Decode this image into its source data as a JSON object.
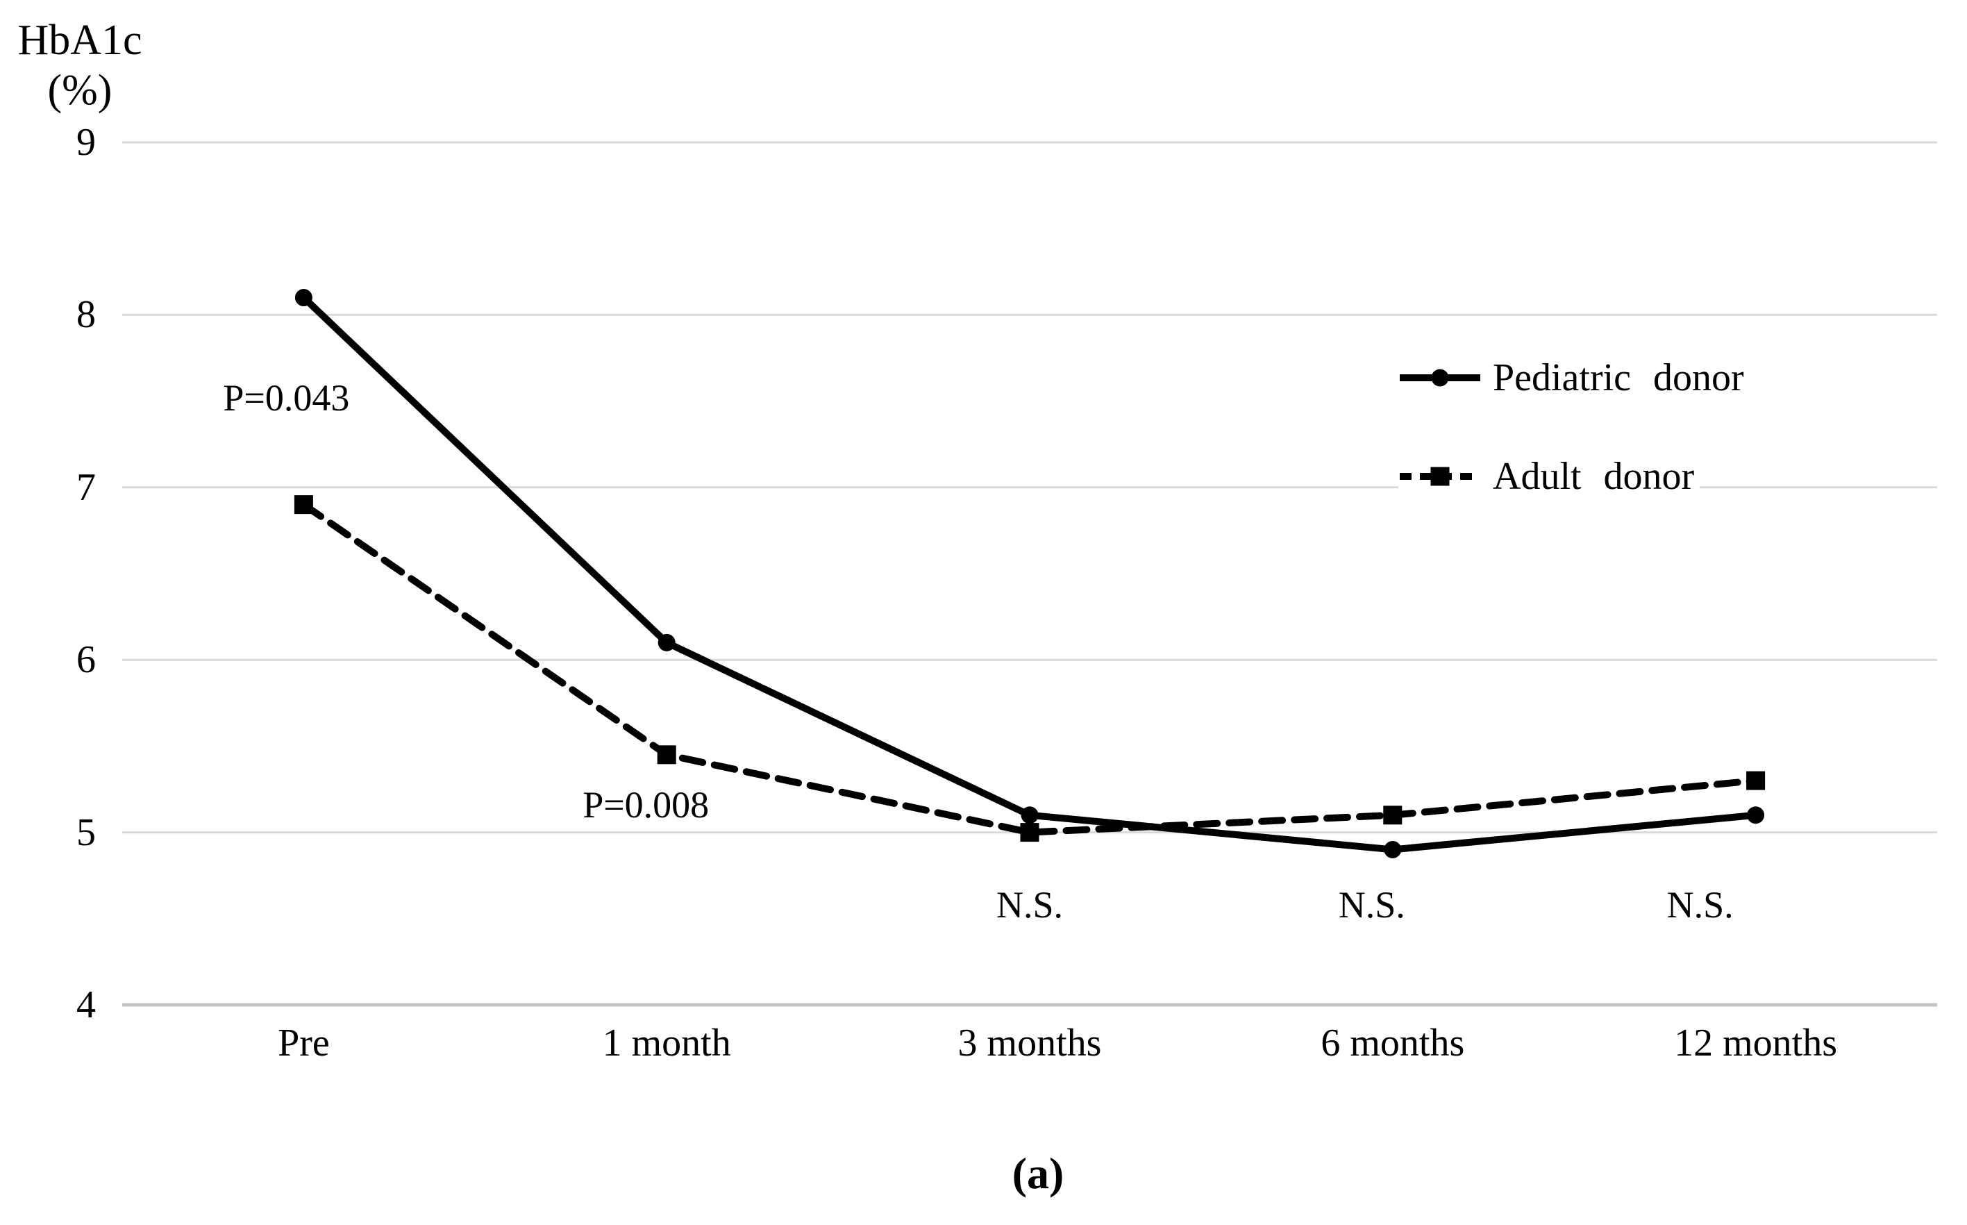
{
  "y_axis": {
    "title_line1": "HbA1c",
    "title_line2": "(%)"
  },
  "caption": "(a)",
  "chart_data": {
    "type": "line",
    "title": "",
    "ylabel": "HbA1c (%)",
    "xlabel": "",
    "categories": [
      "Pre",
      "1 month",
      "3 months",
      "6 months",
      "12 months"
    ],
    "series": [
      {
        "name": "Pediatric donor",
        "line_style": "solid",
        "marker": "circle",
        "color": "#000000",
        "values": [
          8.1,
          6.1,
          5.1,
          4.9,
          5.1
        ]
      },
      {
        "name": "Adult donor",
        "line_style": "dashed",
        "marker": "square",
        "color": "#000000",
        "values": [
          6.9,
          5.45,
          5.0,
          5.1,
          5.3
        ]
      }
    ],
    "y_ticks": [
      9,
      8,
      7,
      6,
      5,
      4
    ],
    "ylim": [
      4,
      9
    ],
    "grid": "horizontal",
    "legend_position": "upper-right",
    "annotations": [
      {
        "text": "P=0.043",
        "category_index": 0,
        "value": 7.52,
        "dx": -25
      },
      {
        "text": "P=0.008",
        "category_index": 1,
        "value": 5.16,
        "dx": -30
      },
      {
        "text": "N.S.",
        "category_index": 2,
        "value": 4.58,
        "dx": 0
      },
      {
        "text": "N.S.",
        "category_index": 3,
        "value": 4.58,
        "dx": -30
      },
      {
        "text": "N.S.",
        "category_index": 4,
        "value": 4.58,
        "dx": -80
      }
    ],
    "colors": {
      "series": "#000000",
      "gridline": "#d9d9d9",
      "axis_line": "#c3c3c3",
      "text": "#000000",
      "background": "#ffffff"
    }
  }
}
